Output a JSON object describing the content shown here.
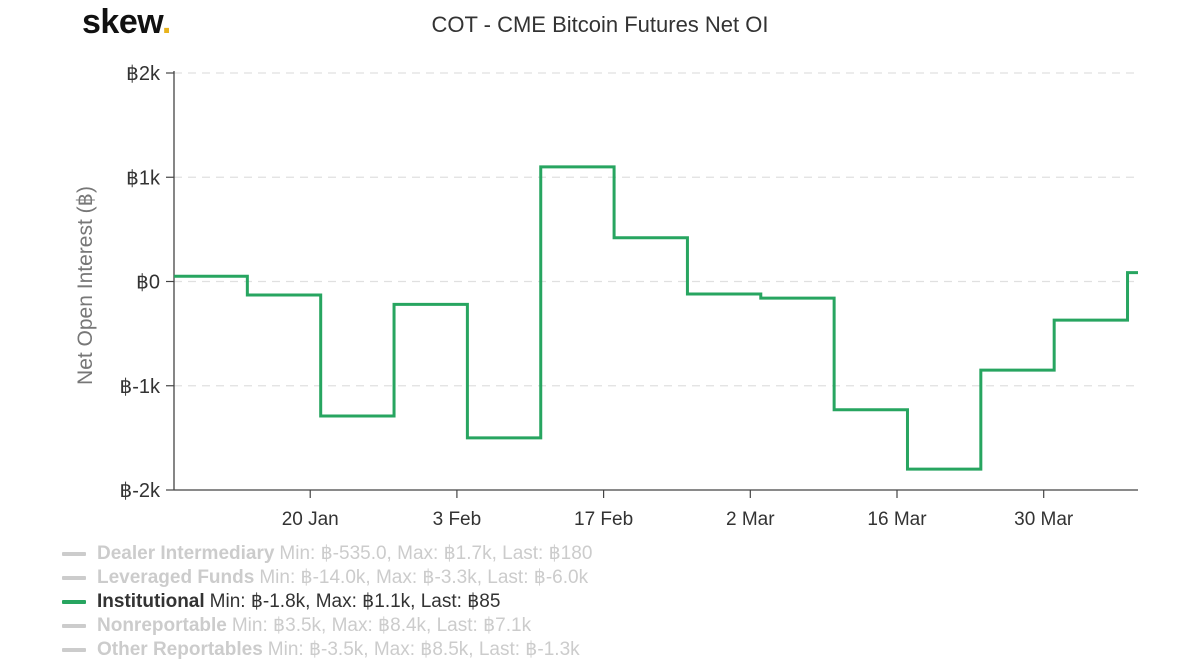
{
  "logo": {
    "text": "skew",
    "dot": "."
  },
  "chart_data": {
    "type": "line",
    "title": "COT - CME Bitcoin Futures Net OI",
    "ylabel": "Net Open Interest (฿)",
    "xlabel": "",
    "ylim": [
      -2000,
      2000
    ],
    "y_ticks": [
      {
        "value": 2000,
        "label": "฿2k"
      },
      {
        "value": 1000,
        "label": "฿1k"
      },
      {
        "value": 0,
        "label": "฿0"
      },
      {
        "value": -1000,
        "label": "฿-1k"
      },
      {
        "value": -2000,
        "label": "฿-2k"
      }
    ],
    "x_ticks": [
      {
        "date": "2020-01-20",
        "label": "20 Jan"
      },
      {
        "date": "2020-02-03",
        "label": "3 Feb"
      },
      {
        "date": "2020-02-17",
        "label": "17 Feb"
      },
      {
        "date": "2020-03-02",
        "label": "2 Mar"
      },
      {
        "date": "2020-03-16",
        "label": "16 Mar"
      },
      {
        "date": "2020-03-30",
        "label": "30 Mar"
      }
    ],
    "xlim": [
      "2020-01-07",
      "2020-04-08"
    ],
    "grid": true,
    "step": true,
    "series": [
      {
        "name": "Institutional",
        "color": "#27a560",
        "x": [
          "2020-01-07",
          "2020-01-14",
          "2020-01-21",
          "2020-01-28",
          "2020-02-04",
          "2020-02-11",
          "2020-02-18",
          "2020-02-25",
          "2020-03-03",
          "2020-03-10",
          "2020-03-17",
          "2020-03-24",
          "2020-03-31",
          "2020-04-07"
        ],
        "values": [
          50,
          -130,
          -1290,
          -220,
          -1500,
          1100,
          420,
          -120,
          -160,
          -1230,
          -1800,
          -850,
          -370,
          85
        ]
      }
    ],
    "legend_placement": "bottom-left",
    "legend": [
      {
        "name": "Dealer Intermediary",
        "stats": "Min: ฿-535.0, Max: ฿1.7k, Last: ฿180",
        "active": false
      },
      {
        "name": "Leveraged Funds",
        "stats": "Min: ฿-14.0k, Max: ฿-3.3k, Last: ฿-6.0k",
        "active": false
      },
      {
        "name": "Institutional",
        "stats": "Min: ฿-1.8k, Max: ฿1.1k, Last: ฿85",
        "active": true
      },
      {
        "name": "Nonreportable",
        "stats": "Min: ฿3.5k, Max: ฿8.4k, Last: ฿7.1k",
        "active": false
      },
      {
        "name": "Other Reportables",
        "stats": "Min: ฿-3.5k, Max: ฿8.5k, Last: ฿-1.3k",
        "active": false
      }
    ]
  }
}
